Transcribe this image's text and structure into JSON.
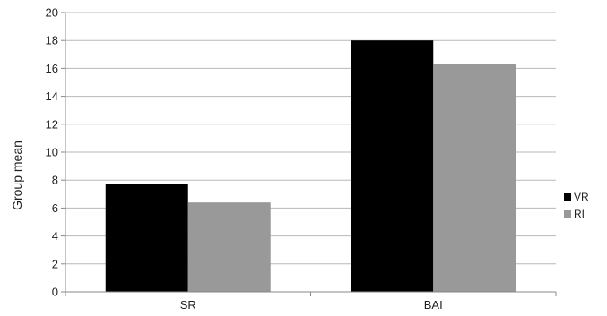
{
  "chart_data": {
    "type": "bar",
    "title": "",
    "xlabel": "",
    "ylabel": "Group mean",
    "categories": [
      "SR",
      "BAI"
    ],
    "series": [
      {
        "name": "VR",
        "values": [
          7.7,
          18.0
        ],
        "color": "#000000"
      },
      {
        "name": "RI",
        "values": [
          6.4,
          16.3
        ],
        "color": "#999999"
      }
    ],
    "ylim": [
      0,
      20
    ],
    "yticks": [
      0,
      2,
      4,
      6,
      8,
      10,
      12,
      14,
      16,
      18,
      20
    ],
    "grid": true,
    "legend": "right"
  }
}
